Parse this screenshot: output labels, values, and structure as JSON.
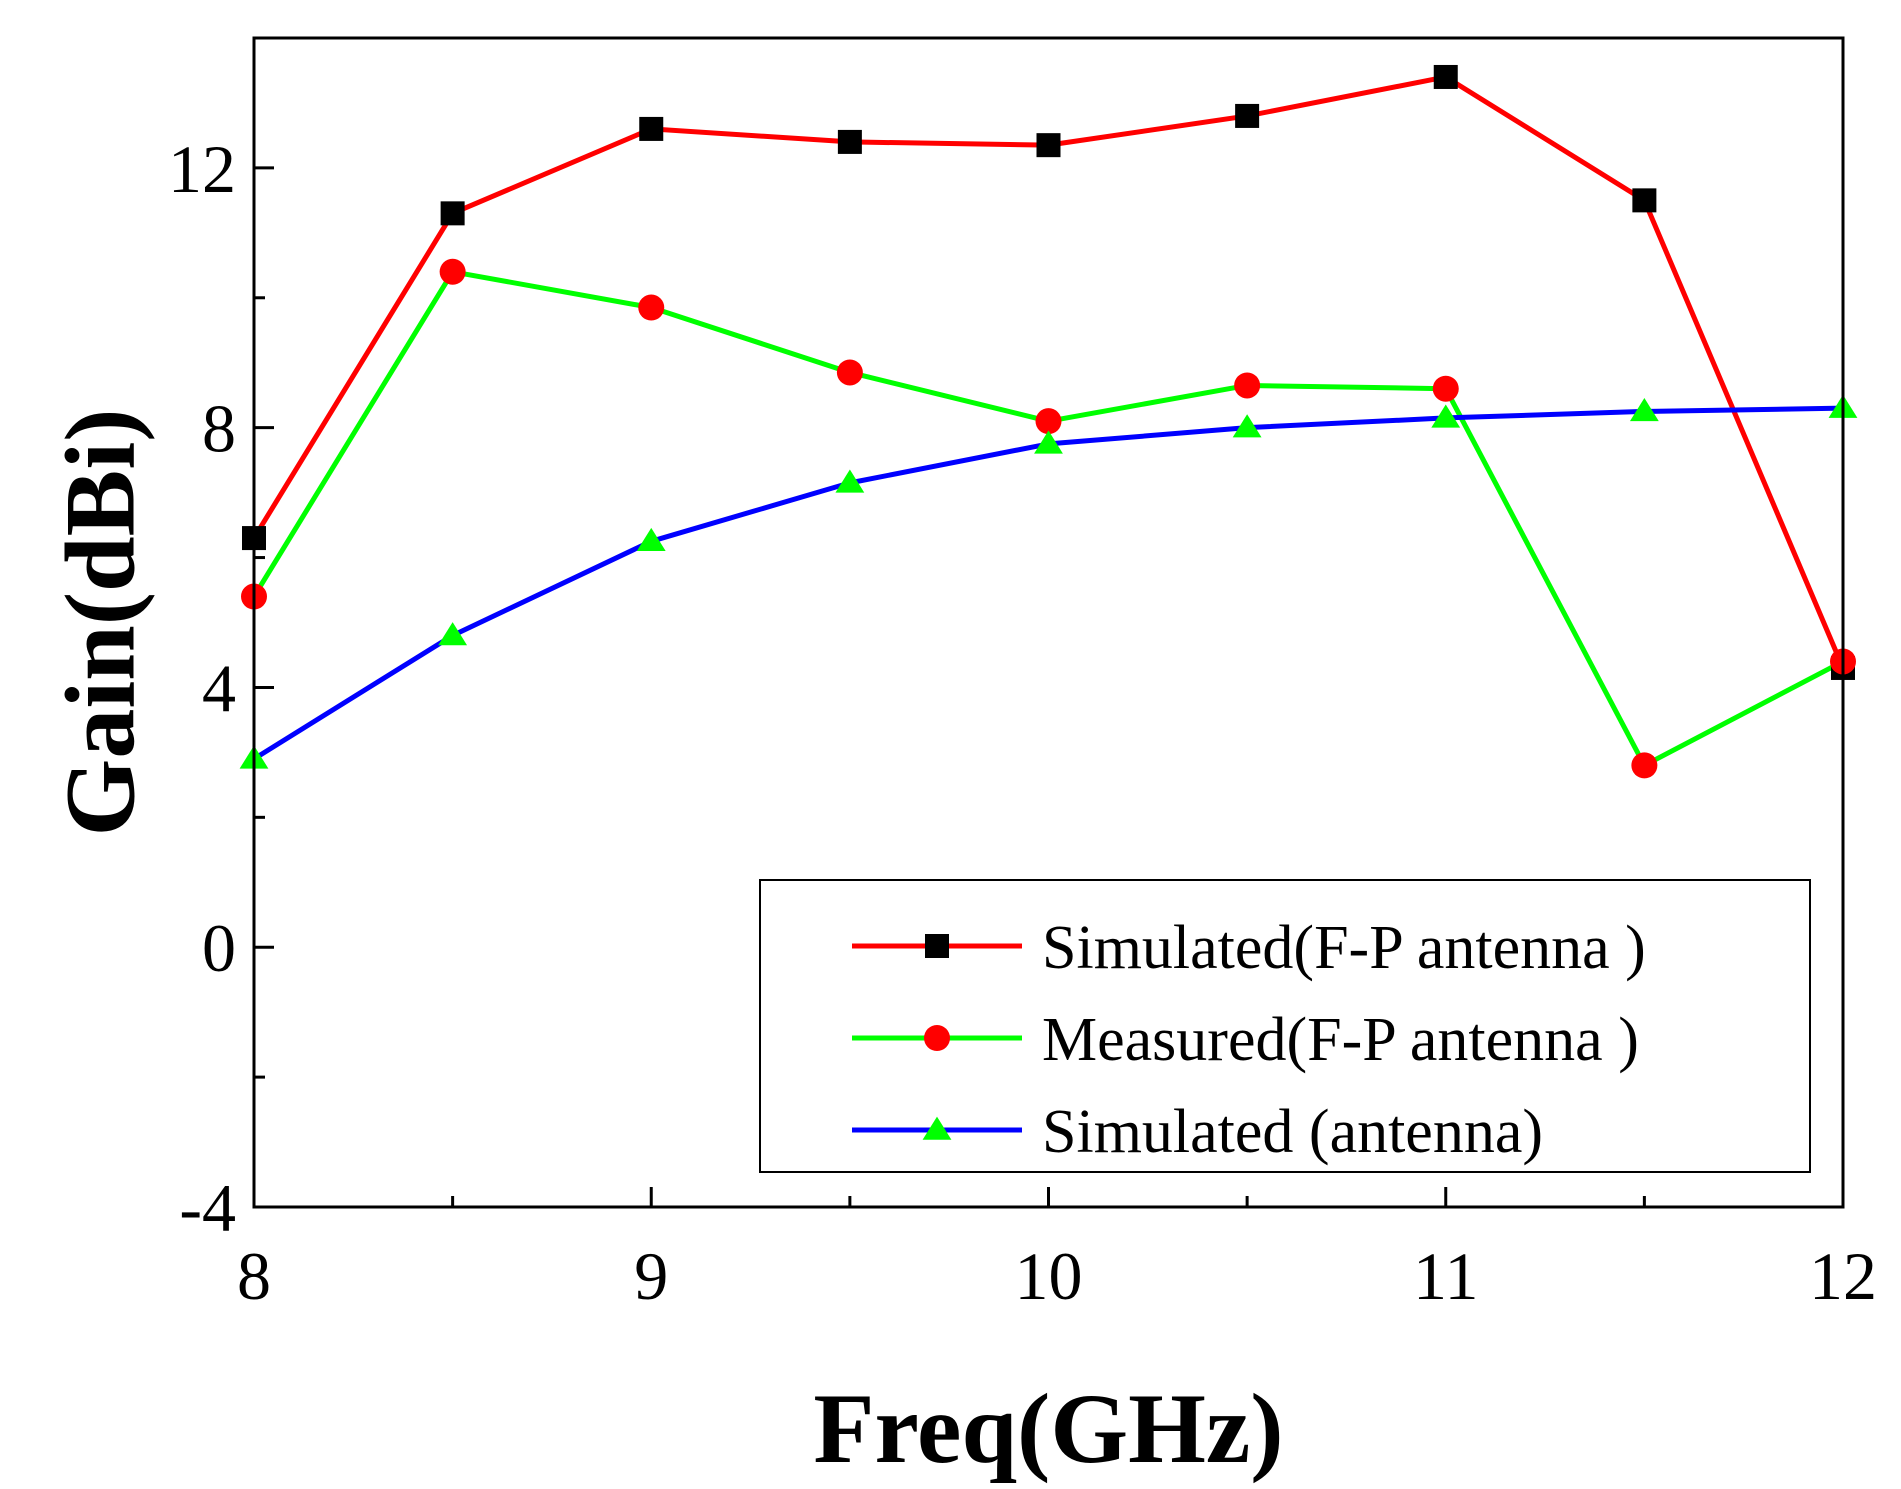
{
  "chart_data": {
    "type": "line",
    "title": "",
    "xlabel": "Freq(GHz)",
    "ylabel": "Gain(dBi)",
    "xlim": [
      8,
      12
    ],
    "ylim": [
      -4,
      14
    ],
    "xticks": [
      8,
      9,
      10,
      11,
      12
    ],
    "xtick_labels": [
      "8",
      "9",
      "10",
      "11",
      "12"
    ],
    "yticks": [
      -4,
      0,
      4,
      8,
      12
    ],
    "ytick_labels": [
      "-4",
      "0",
      "4",
      "8",
      "12"
    ],
    "grid": false,
    "legend_position": "bottom-right",
    "series": [
      {
        "name": "Simulated(F-P antenna )",
        "color": "#ff0000",
        "marker": "square",
        "marker_color": "#000000",
        "x": [
          8,
          8.5,
          9,
          9.5,
          10,
          10.5,
          11,
          11.5,
          12
        ],
        "y": [
          6.3,
          11.3,
          12.6,
          12.4,
          12.35,
          12.8,
          13.4,
          11.5,
          4.3
        ]
      },
      {
        "name": "Measured(F-P antenna )",
        "color": "#00ff00",
        "marker": "circle",
        "marker_color": "#ff0000",
        "x": [
          8,
          8.5,
          9,
          9.5,
          10,
          10.5,
          11,
          11.5,
          12
        ],
        "y": [
          5.4,
          10.4,
          9.85,
          8.85,
          8.1,
          8.65,
          8.6,
          2.8,
          4.4
        ]
      },
      {
        "name": "Simulated (antenna)",
        "color": "#0000ff",
        "marker": "triangle",
        "marker_color": "#00ff00",
        "x": [
          8,
          8.5,
          9,
          9.5,
          10,
          10.5,
          11,
          11.5,
          12
        ],
        "y": [
          2.9,
          4.8,
          6.25,
          7.15,
          7.75,
          8.0,
          8.15,
          8.25,
          8.3
        ]
      }
    ]
  }
}
